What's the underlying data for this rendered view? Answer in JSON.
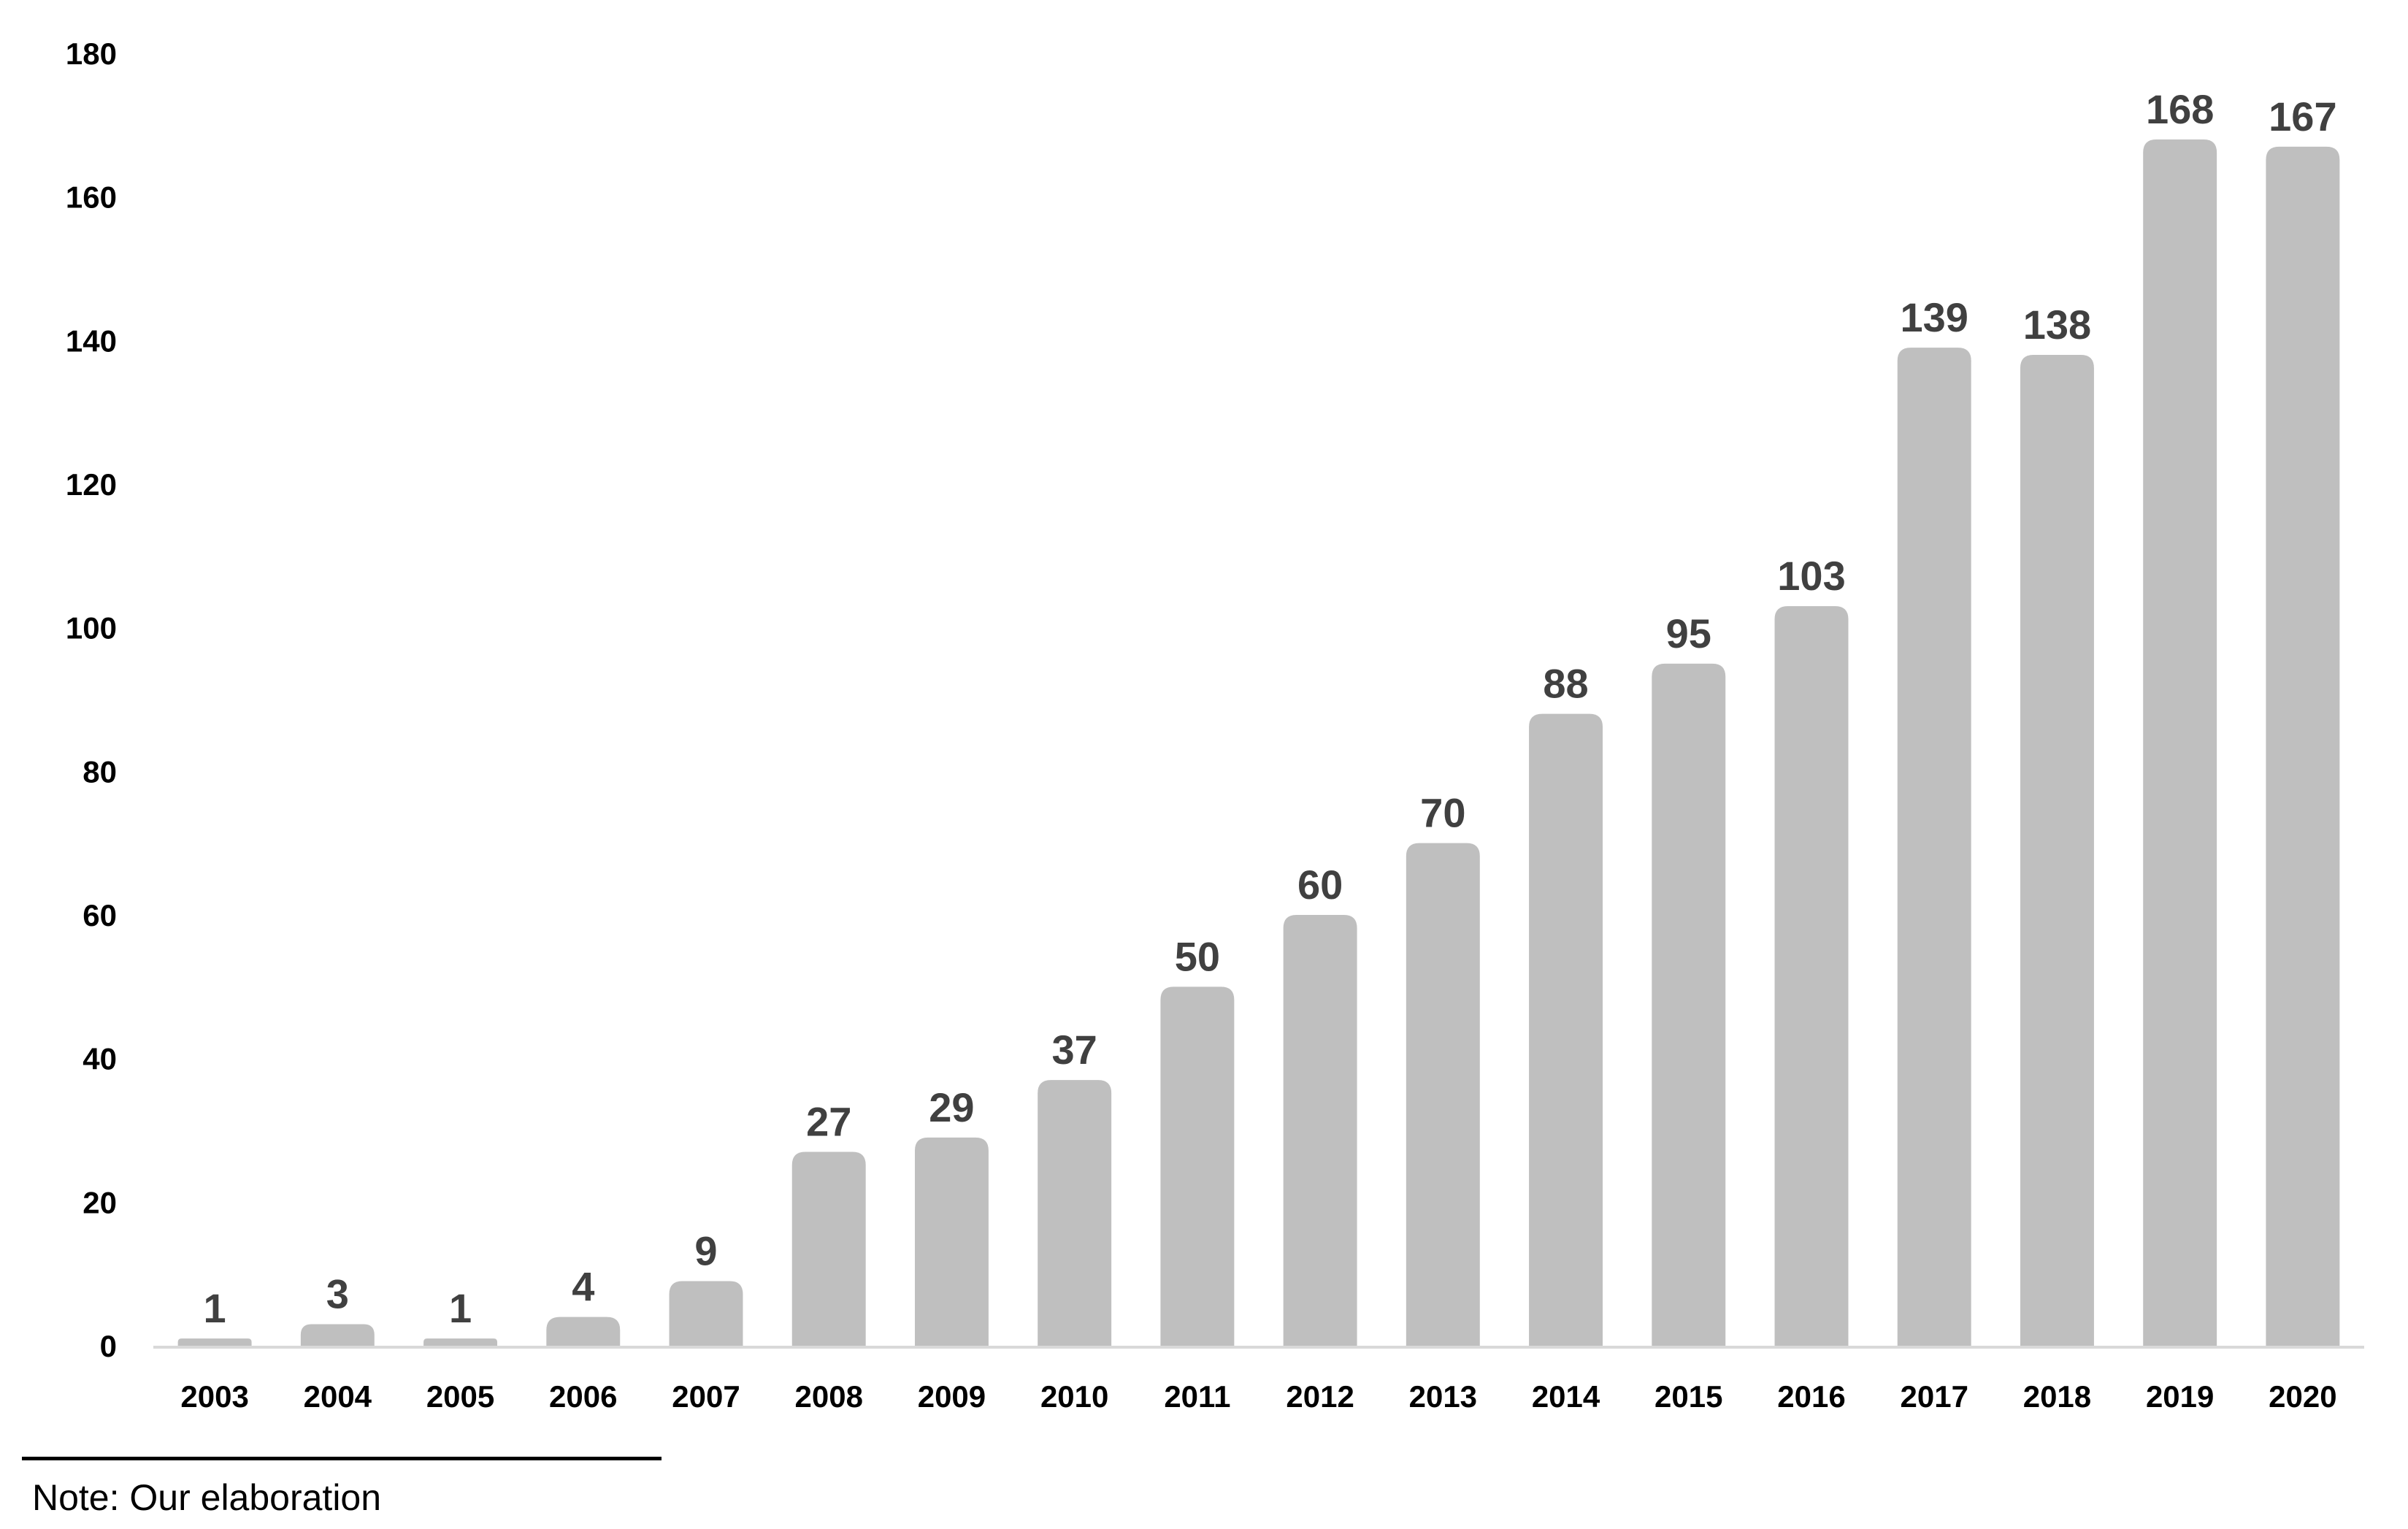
{
  "chart_data": {
    "type": "bar",
    "categories": [
      "2003",
      "2004",
      "2005",
      "2006",
      "2007",
      "2008",
      "2009",
      "2010",
      "2011",
      "2012",
      "2013",
      "2014",
      "2015",
      "2016",
      "2017",
      "2018",
      "2019",
      "2020"
    ],
    "values": [
      1,
      3,
      1,
      4,
      9,
      27,
      29,
      37,
      50,
      60,
      70,
      88,
      95,
      103,
      139,
      138,
      168,
      167
    ],
    "ylim": [
      0,
      180
    ],
    "yticks": [
      0,
      20,
      40,
      60,
      80,
      100,
      120,
      140,
      160,
      180
    ],
    "title": "",
    "xlabel": "",
    "ylabel": "",
    "grid": false,
    "data_labels": true,
    "bar_color": "#bfbfbf",
    "label_color": "#404040"
  },
  "note": "Note: Our elaboration"
}
